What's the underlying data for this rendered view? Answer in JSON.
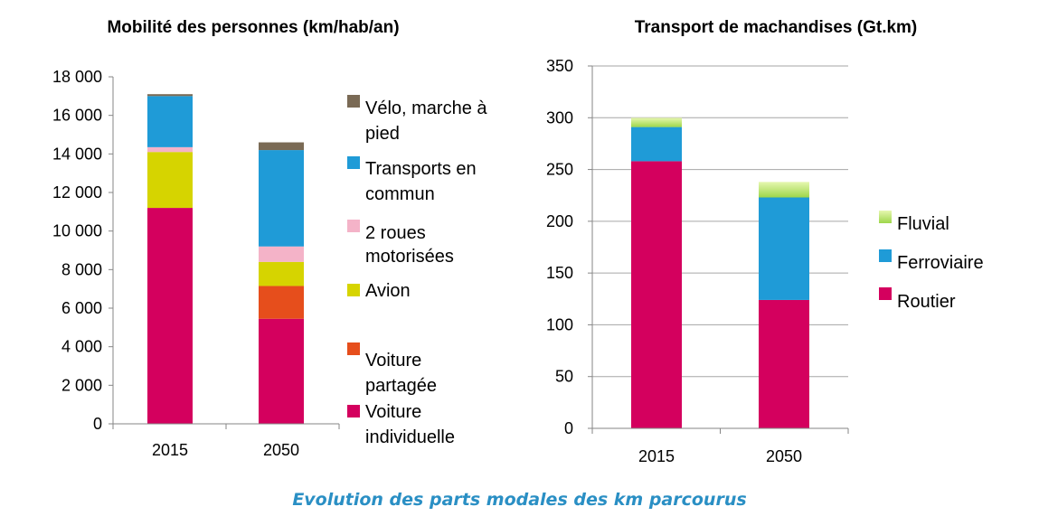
{
  "caption": "Evolution des parts modales des km parcourus",
  "chart_data": [
    {
      "type": "bar",
      "stacked": true,
      "title": "Mobilité des personnes (km/hab/an)",
      "categories": [
        "2015",
        "2050"
      ],
      "ylim": [
        0,
        18000
      ],
      "yticks": [
        0,
        2000,
        4000,
        6000,
        8000,
        10000,
        12000,
        14000,
        16000,
        18000
      ],
      "ytick_labels": [
        "0",
        "2 000",
        "4 000",
        "6 000",
        "8 000",
        "10 000",
        "12 000",
        "14 000",
        "16 000",
        "18 000"
      ],
      "grid": false,
      "legend": "right",
      "series": [
        {
          "name": "Voiture individuelle",
          "legend_lines": [
            "Voiture",
            "individuelle"
          ],
          "color": "#d4005e",
          "values": [
            11200,
            5450
          ]
        },
        {
          "name": "Voiture partagée",
          "legend_lines": [
            "Voiture",
            "partagée"
          ],
          "color": "#e64e1c",
          "values": [
            0,
            1700
          ]
        },
        {
          "name": "Avion",
          "legend_lines": [
            "Avion"
          ],
          "color": "#d6d400",
          "values": [
            2900,
            1250
          ]
        },
        {
          "name": "2 roues motorisées",
          "legend_lines": [
            "2 roues",
            "motorisées"
          ],
          "color": "#f4b3c8",
          "values": [
            250,
            800
          ]
        },
        {
          "name": "Transports en commun",
          "legend_lines": [
            "Transports en",
            "commun"
          ],
          "color": "#1f9bd7",
          "values": [
            2650,
            5000
          ]
        },
        {
          "name": "Vélo, marche à pied",
          "legend_lines": [
            "Vélo, marche à",
            "pied"
          ],
          "color": "#7a6a55",
          "values": [
            100,
            400
          ]
        }
      ]
    },
    {
      "type": "bar",
      "stacked": true,
      "title": "Transport de machandises (Gt.km)",
      "categories": [
        "2015",
        "2050"
      ],
      "ylim": [
        0,
        350
      ],
      "yticks": [
        0,
        50,
        100,
        150,
        200,
        250,
        300,
        350
      ],
      "ytick_labels": [
        "0",
        "50",
        "100",
        "150",
        "200",
        "250",
        "300",
        "350"
      ],
      "grid": true,
      "legend": "right",
      "series": [
        {
          "name": "Routier",
          "legend_lines": [
            "Routier"
          ],
          "color": "#d4005e",
          "values": [
            258,
            124
          ]
        },
        {
          "name": "Ferroviaire",
          "legend_lines": [
            "Ferroviaire"
          ],
          "color": "#1f9bd7",
          "values": [
            33,
            99
          ]
        },
        {
          "name": "Fluvial",
          "legend_lines": [
            "Fluvial"
          ],
          "color": "#b4e36a",
          "values": [
            9,
            15
          ]
        }
      ]
    }
  ]
}
